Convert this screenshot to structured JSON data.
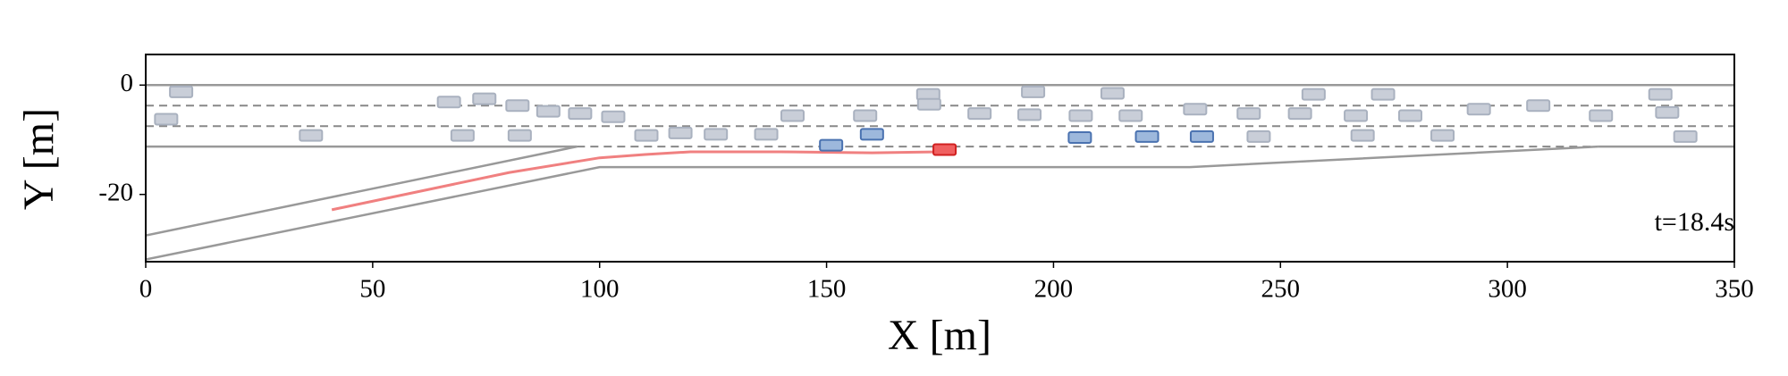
{
  "chart_data": {
    "type": "scatter",
    "xlabel": "X [m]",
    "ylabel": "Y [m]",
    "annotation": "t=18.4s",
    "xlim": [
      0,
      350
    ],
    "ylim": [
      -32.3,
      5.6
    ],
    "xticks": [
      0,
      50,
      100,
      150,
      200,
      250,
      300,
      350
    ],
    "yticks": [
      0,
      -20
    ],
    "roads": [
      {
        "color": "#999999",
        "dashed": false,
        "x": [
          0,
          350
        ],
        "y": [
          0,
          0
        ]
      },
      {
        "color": "#888888",
        "dashed": true,
        "x": [
          0,
          350
        ],
        "y": [
          -3.75,
          -3.75
        ]
      },
      {
        "color": "#888888",
        "dashed": true,
        "x": [
          0,
          350
        ],
        "y": [
          -7.5,
          -7.5
        ]
      },
      {
        "color": "#999999",
        "dashed": false,
        "x": [
          0,
          95
        ],
        "y": [
          -11.25,
          -11.25
        ]
      },
      {
        "color": "#888888",
        "dashed": true,
        "x": [
          95,
          320
        ],
        "y": [
          -11.25,
          -11.25
        ]
      },
      {
        "color": "#999999",
        "dashed": false,
        "x": [
          320,
          350
        ],
        "y": [
          -11.25,
          -11.25
        ]
      },
      {
        "color": "#999999",
        "dashed": false,
        "x": [
          0,
          95
        ],
        "y": [
          -27.5,
          -11.25
        ]
      },
      {
        "color": "#999999",
        "dashed": false,
        "x": [
          0,
          100,
          230,
          320
        ],
        "y": [
          -31.9,
          -15,
          -15,
          -11.25
        ]
      }
    ],
    "trajectory": {
      "color": "#f08080",
      "x": [
        41,
        60,
        80,
        100,
        110,
        120,
        140,
        160,
        175
      ],
      "y": [
        -22.8,
        -19.5,
        -16,
        -13.3,
        -12.7,
        -12.2,
        -12.2,
        -12.4,
        -12.2
      ]
    },
    "series": [
      {
        "color": "#c9ced8",
        "stroke": "#a9b1bf",
        "x": [
          7.8,
          4.5,
          36.4,
          66.8,
          74.6,
          69.8,
          81.9,
          82.4,
          88.7,
          95.7,
          103,
          110.3,
          117.8,
          125.6,
          136.7,
          142.5,
          158.5,
          172.4,
          172.6,
          183.7,
          195.5,
          194.7,
          206,
          213,
          217,
          231.2,
          243,
          245.2,
          254.3,
          257.3,
          266.6,
          268.1,
          272.6,
          278.6,
          285.7,
          293.7,
          306.8,
          320.6,
          333.7,
          335.2,
          339.2
        ],
        "y": [
          -1.25,
          -6.25,
          -9.2,
          -3.1,
          -2.5,
          -9.2,
          -3.75,
          -9.2,
          -4.8,
          -5.2,
          -5.8,
          -9.2,
          -8.75,
          -9,
          -9,
          -5.6,
          -5.6,
          -1.7,
          -3.5,
          -5.2,
          -1.25,
          -5.4,
          -5.6,
          -1.5,
          -5.6,
          -4.4,
          -5.2,
          -9.4,
          -5.2,
          -1.7,
          -5.6,
          -9.2,
          -1.7,
          -5.6,
          -9.2,
          -4.4,
          -3.75,
          -5.6,
          -1.7,
          -5,
          -9.4
        ]
      },
      {
        "color": "#9db8dc",
        "stroke": "#4a72b0",
        "x": [
          151,
          160,
          205.8,
          220.6,
          232.7
        ],
        "y": [
          -11,
          -9,
          -9.6,
          -9.4,
          -9.4
        ]
      },
      {
        "color": "#f06060",
        "stroke": "#d02020",
        "x": [
          176
        ],
        "y": [
          -11.8
        ]
      }
    ]
  }
}
